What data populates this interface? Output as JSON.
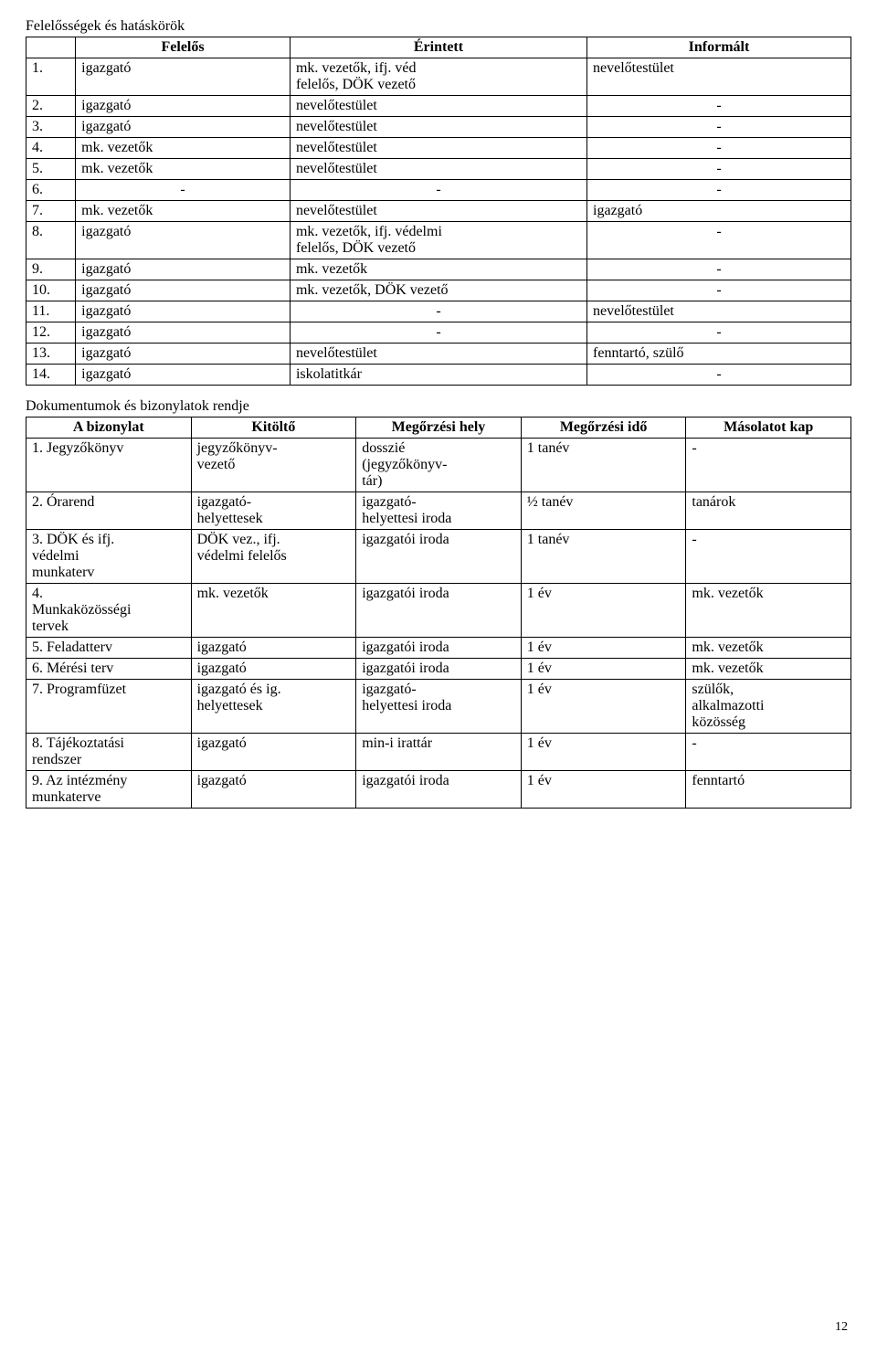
{
  "section1": {
    "title": "Felelősségek és hatáskörök",
    "headers": [
      "",
      "Felelős",
      "Érintett",
      "Informált"
    ],
    "rows": [
      [
        "1.",
        "igazgató",
        "mk. vezetők, ifj. véd\nfelelős, DÖK vezető",
        "nevelőtestület"
      ],
      [
        "2.",
        "igazgató",
        "nevelőtestület",
        "-"
      ],
      [
        "3.",
        "igazgató",
        "nevelőtestület",
        "-"
      ],
      [
        "4.",
        "mk. vezetők",
        "nevelőtestület",
        "-"
      ],
      [
        "5.",
        "mk. vezetők",
        "nevelőtestület",
        "-"
      ],
      [
        "6.",
        "-",
        "-",
        "-"
      ],
      [
        "7.",
        "mk. vezetők",
        "nevelőtestület",
        "igazgató"
      ],
      [
        "8.",
        "igazgató",
        "mk. vezetők, ifj. védelmi\nfelelős, DÖK vezető",
        "-"
      ],
      [
        "9.",
        "igazgató",
        "mk. vezetők",
        "-"
      ],
      [
        "10.",
        "igazgató",
        "mk. vezetők, DÖK vezető",
        "-"
      ],
      [
        "11.",
        "igazgató",
        "-",
        "nevelőtestület"
      ],
      [
        "12.",
        "igazgató",
        "-",
        "-"
      ],
      [
        "13.",
        "igazgató",
        "nevelőtestület",
        "fenntartó, szülő"
      ],
      [
        "14.",
        "igazgató",
        "iskolatitkár",
        "-"
      ]
    ]
  },
  "section2": {
    "title": "Dokumentumok és bizonylatok rendje",
    "headers": [
      "A bizonylat",
      "Kitöltő",
      "Megőrzési hely",
      "Megőrzési idő",
      "Másolatot kap"
    ],
    "rows": [
      [
        "1. Jegyzőkönyv",
        "jegyzőkönyv-\nvezető",
        "dosszié\n(jegyzőkönyv-\ntár)",
        "1 tanév",
        "-"
      ],
      [
        "2. Órarend",
        "igazgató-\nhelyettesek",
        "igazgató-\nhelyettesi iroda",
        "½ tanév",
        "tanárok"
      ],
      [
        "3. DÖK és ifj.\nvédelmi\nmunkaterv",
        "DÖK vez., ifj.\nvédelmi felelős",
        "igazgatói iroda",
        "1 tanév",
        "-"
      ],
      [
        "4.\nMunkaközösségi\ntervek",
        "mk. vezetők",
        "igazgatói iroda",
        "1 év",
        "mk. vezetők"
      ],
      [
        "5. Feladatterv",
        "igazgató",
        "igazgatói iroda",
        "1 év",
        "mk. vezetők"
      ],
      [
        "6. Mérési terv",
        "igazgató",
        "igazgatói iroda",
        "1 év",
        "mk. vezetők"
      ],
      [
        "7. Programfüzet",
        "igazgató és ig.\nhelyettesek",
        "igazgató-\nhelyettesi iroda",
        "1 év",
        "szülők,\nalkalmazotti\nközösség"
      ],
      [
        "8. Tájékoztatási\nrendszer",
        "igazgató",
        "min-i irattár",
        "1 év",
        "-"
      ],
      [
        "9. Az intézmény\nmunkaterve",
        "igazgató",
        "igazgatói iroda",
        "1 év",
        "fenntartó"
      ]
    ]
  },
  "page_number": "12"
}
